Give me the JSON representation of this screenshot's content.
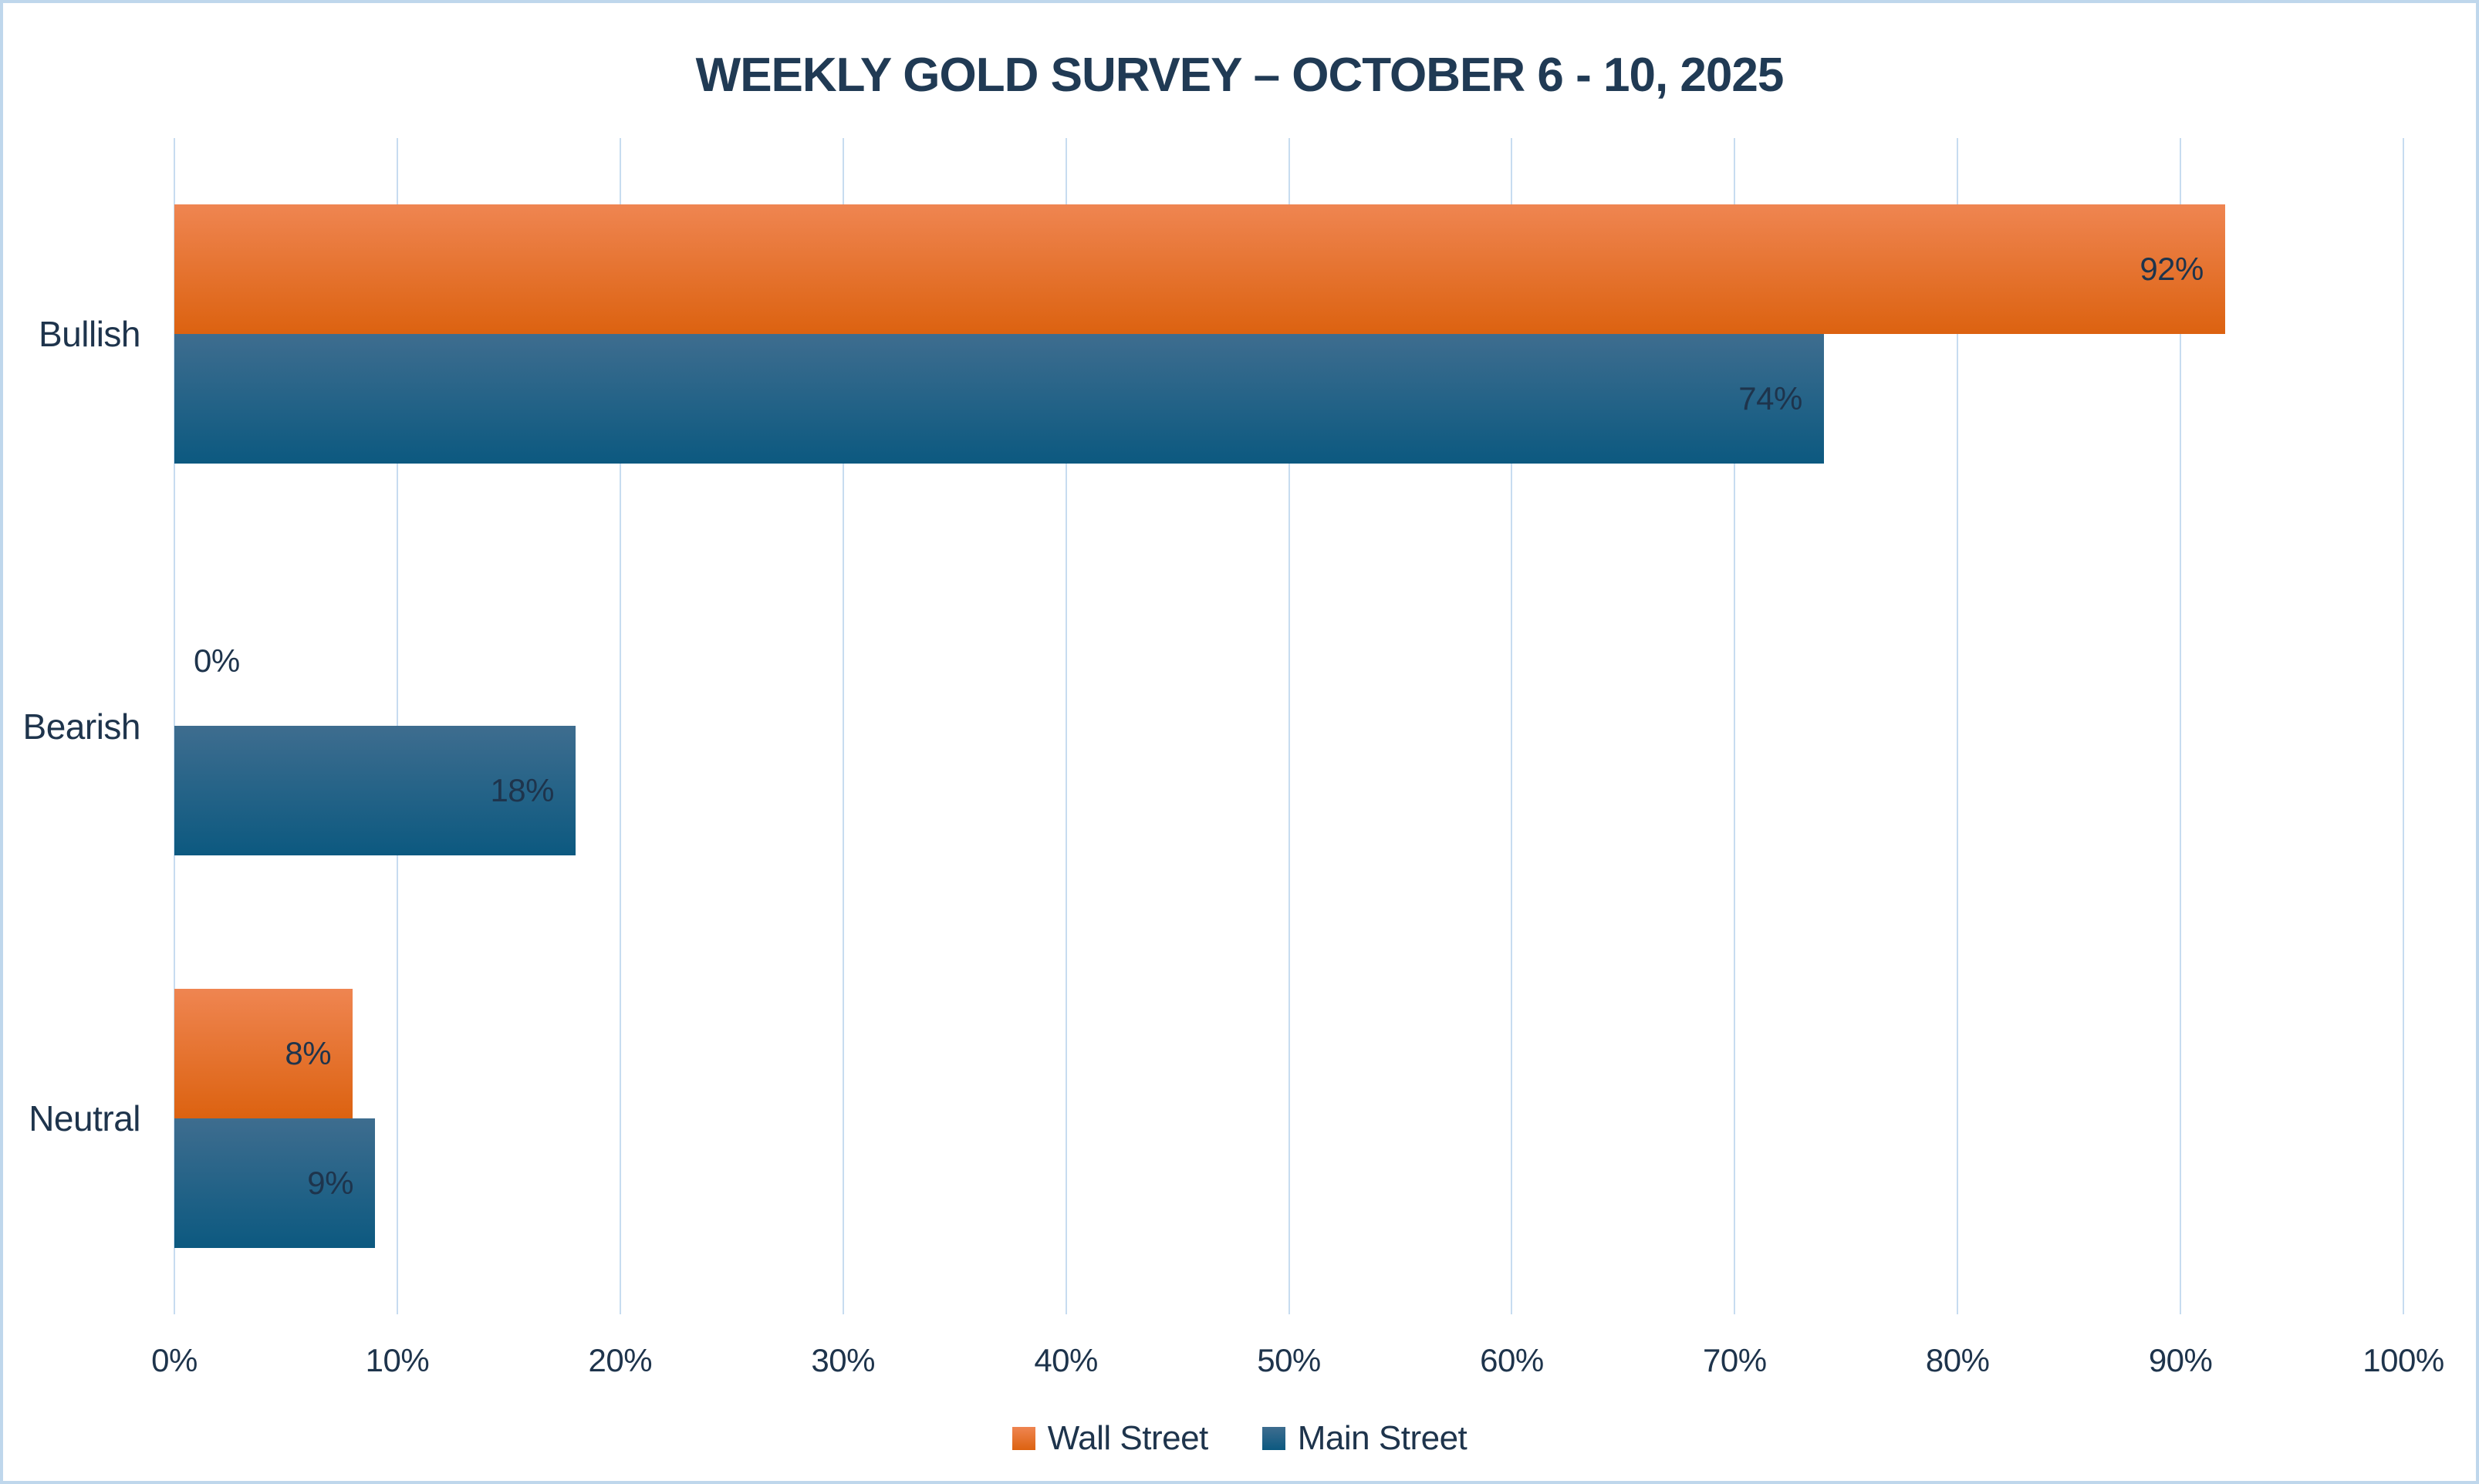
{
  "chart_data": {
    "type": "bar",
    "orientation": "horizontal",
    "title": "WEEKLY GOLD SURVEY – OCTOBER 6 - 10, 2025",
    "categories": [
      "Bullish",
      "Bearish",
      "Neutral"
    ],
    "series": [
      {
        "name": "Wall Street",
        "values": [
          92,
          0,
          8
        ],
        "labels": [
          "92%",
          "0%",
          "8%"
        ],
        "color_top": "#EF8551",
        "color_bottom": "#DC6210"
      },
      {
        "name": "Main Street",
        "values": [
          74,
          18,
          9
        ],
        "labels": [
          "74%",
          "18%",
          "9%"
        ],
        "color_top": "#3E6D8F",
        "color_bottom": "#0C5980"
      }
    ],
    "xlabel": "",
    "ylabel": "",
    "xlim": [
      0,
      100
    ],
    "x_ticks": [
      0,
      10,
      20,
      30,
      40,
      50,
      60,
      70,
      80,
      90,
      100
    ],
    "x_tick_labels": [
      "0%",
      "10%",
      "20%",
      "30%",
      "40%",
      "50%",
      "60%",
      "70%",
      "80%",
      "90%",
      "100%"
    ],
    "grid": "vertical",
    "legend_position": "bottom",
    "data_label_position": "inside-end"
  },
  "style": {
    "background": "#FFFFFF",
    "border": "#BFD7EC",
    "gridline": "#C7DCF0",
    "title_color": "#203A54",
    "text_color": "#1E344C"
  }
}
